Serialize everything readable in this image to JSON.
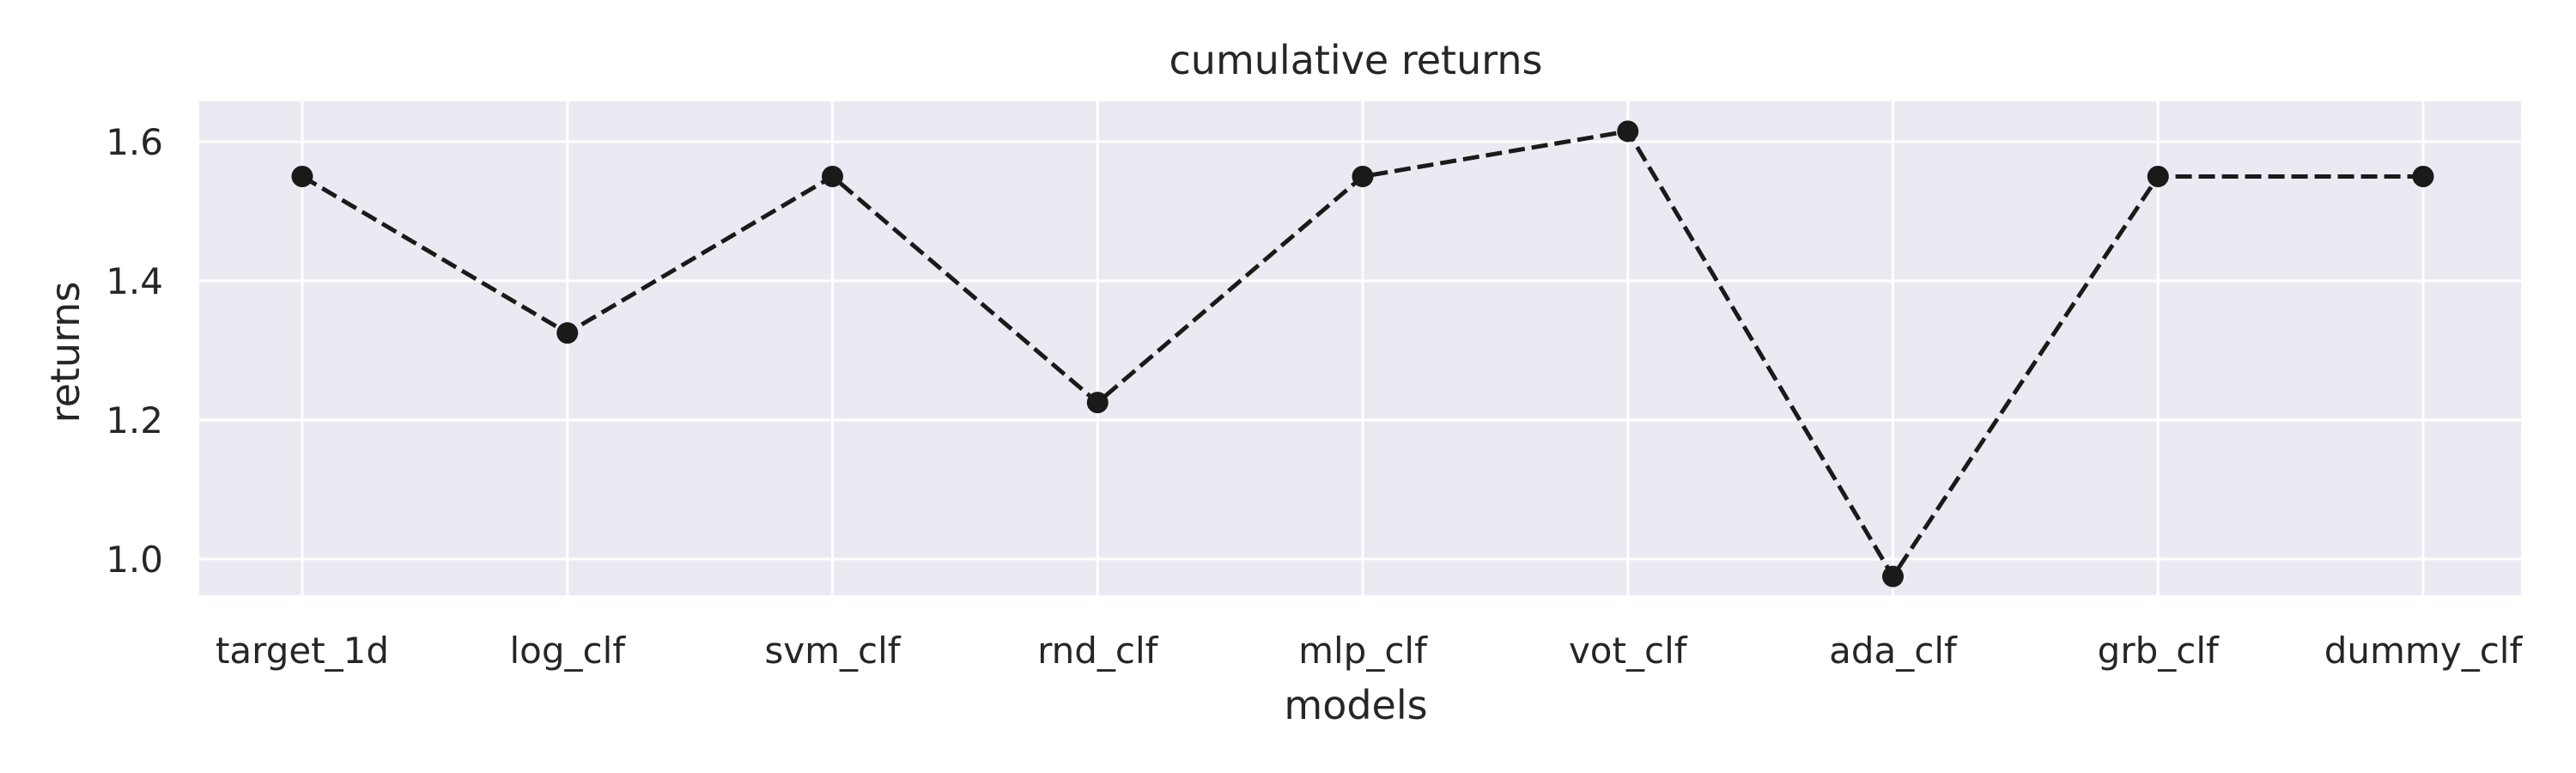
{
  "chart_data": {
    "type": "line",
    "title": "cumulative returns",
    "xlabel": "models",
    "ylabel": "returns",
    "categories": [
      "target_1d",
      "log_clf",
      "svm_clf",
      "rnd_clf",
      "mlp_clf",
      "vot_clf",
      "ada_clf",
      "grb_clf",
      "dummy_clf"
    ],
    "series": [
      {
        "values": [
          1.55,
          1.325,
          1.55,
          1.225,
          1.55,
          1.615,
          0.975,
          1.55,
          1.55
        ]
      }
    ],
    "yticks": [
      "1.0",
      "1.2",
      "1.4",
      "1.6"
    ],
    "ylim": [
      0.948,
      1.658
    ],
    "grid": true,
    "line_style": "dashed",
    "marker": "circle",
    "colors": {
      "series": "#1a1a1a",
      "plot_background": "#eaeaf2",
      "grid": "#ffffff"
    }
  }
}
